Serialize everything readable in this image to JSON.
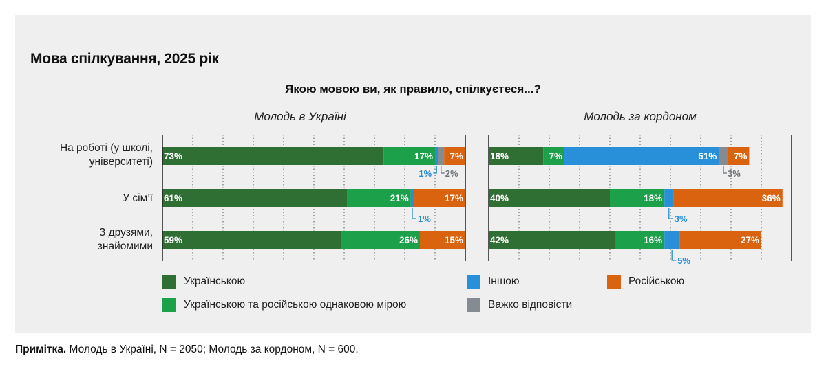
{
  "title": "Мова спілкування, 2025 рік",
  "note": {
    "bold": "Примітка.",
    "text": " Молодь в Україні, N = 2050; Молодь за кордоном, N = 600."
  },
  "colors": {
    "ukr": "#2f6f34",
    "both": "#1ca14a",
    "other": "#2790d8",
    "rus": "#d9630e",
    "hard": "#858b91"
  },
  "chart_data": {
    "type": "bar",
    "orientation": "horizontal-stacked",
    "title": "Якою мовою ви, як правило, спілкуєтеся...?",
    "categories": [
      "На роботі (у школі, університеті)",
      "У сім’ї",
      "З друзями, знайомими"
    ],
    "category_lines": [
      [
        "На роботі (у школі,",
        "університеті)"
      ],
      [
        "У сім’ї"
      ],
      [
        "З друзями,",
        "знайомими"
      ]
    ],
    "legend": [
      {
        "key": "ukr",
        "label": "Українською"
      },
      {
        "key": "both",
        "label": "Українською та російською однаковою мірою"
      },
      {
        "key": "other",
        "label": "Іншою"
      },
      {
        "key": "hard",
        "label": "Важко відповісти"
      },
      {
        "key": "rus",
        "label": "Російською"
      }
    ],
    "panels": [
      {
        "name": "Молодь в Україні",
        "series": [
          {
            "key": "ukr",
            "values": [
              73,
              61,
              59
            ],
            "labels": [
              "73%",
              "61%",
              "59%"
            ]
          },
          {
            "key": "both",
            "values": [
              17,
              21,
              26
            ],
            "labels": [
              "17%",
              "21%",
              "26%"
            ]
          },
          {
            "key": "other",
            "values": [
              1,
              1,
              0
            ],
            "labels": [
              "1%",
              "1%",
              ""
            ]
          },
          {
            "key": "hard",
            "values": [
              2,
              0,
              0
            ],
            "labels": [
              "2%",
              "",
              ""
            ]
          },
          {
            "key": "rus",
            "values": [
              7,
              17,
              15
            ],
            "labels": [
              "7%",
              "17%",
              "15%"
            ]
          }
        ]
      },
      {
        "name": "Молодь за кордоном",
        "series": [
          {
            "key": "ukr",
            "values": [
              18,
              40,
              42
            ],
            "labels": [
              "18%",
              "40%",
              "42%"
            ]
          },
          {
            "key": "both",
            "values": [
              7,
              18,
              16
            ],
            "labels": [
              "7%",
              "18%",
              "16%"
            ]
          },
          {
            "key": "other",
            "values": [
              51,
              3,
              5
            ],
            "labels": [
              "51%",
              "3%",
              "5%"
            ]
          },
          {
            "key": "hard",
            "values": [
              3,
              0,
              0
            ],
            "labels": [
              "3%",
              "",
              ""
            ]
          },
          {
            "key": "rus",
            "values": [
              7,
              36,
              27
            ],
            "labels": [
              "7%",
              "36%",
              "27%"
            ]
          }
        ]
      }
    ],
    "xlim": [
      0,
      100
    ],
    "grid": true
  }
}
